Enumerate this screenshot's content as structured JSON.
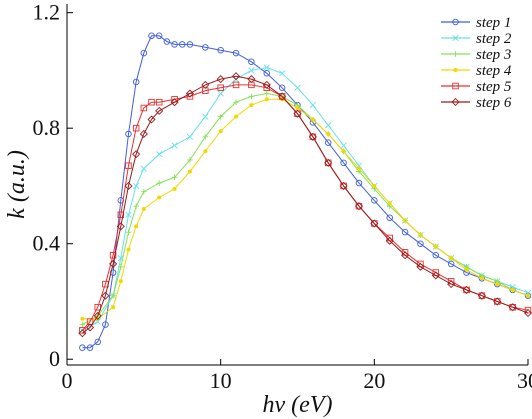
{
  "chart_data": {
    "type": "line",
    "title": "",
    "xlabel": "hν  (eV)",
    "ylabel": "k (a.u.)",
    "xlim": [
      0,
      30
    ],
    "ylim": [
      -0.02,
      1.23
    ],
    "xticks": [
      0,
      10,
      20,
      30
    ],
    "yticks": [
      0,
      0.4,
      0.8,
      1.2
    ],
    "xtick_labels": [
      "0",
      "10",
      "20",
      "30"
    ],
    "ytick_labels": [
      "0",
      "0.4",
      "0.8",
      "1.2"
    ],
    "grid": false,
    "legend_position": "top-right",
    "series": [
      {
        "name": "step 1",
        "color": "#3f5fe0",
        "marker": "circle",
        "x": [
          1,
          1.5,
          2,
          2.5,
          3,
          3.5,
          4,
          4.5,
          5,
          5.5,
          6,
          6.5,
          7,
          7.5,
          8,
          9,
          10,
          11,
          12,
          13,
          14,
          15,
          16,
          17,
          18,
          19,
          20,
          21,
          22,
          23,
          24,
          25,
          26,
          27,
          28,
          29,
          30
        ],
        "y": [
          0.04,
          0.04,
          0.06,
          0.12,
          0.3,
          0.55,
          0.78,
          0.96,
          1.06,
          1.12,
          1.12,
          1.1,
          1.09,
          1.09,
          1.09,
          1.08,
          1.07,
          1.06,
          1.03,
          0.99,
          0.94,
          0.88,
          0.82,
          0.75,
          0.68,
          0.61,
          0.55,
          0.49,
          0.44,
          0.4,
          0.36,
          0.33,
          0.3,
          0.28,
          0.26,
          0.24,
          0.22
        ]
      },
      {
        "name": "step 2",
        "color": "#66e0ee",
        "marker": "cross",
        "x": [
          1,
          2,
          3,
          3.5,
          4,
          4.5,
          5,
          6,
          7,
          8,
          9,
          10,
          11,
          12,
          13,
          14,
          15,
          16,
          17,
          18,
          19,
          20,
          21,
          22,
          23,
          24,
          25,
          26,
          27,
          28,
          29,
          30
        ],
        "y": [
          0.1,
          0.13,
          0.22,
          0.35,
          0.5,
          0.6,
          0.66,
          0.71,
          0.74,
          0.77,
          0.84,
          0.92,
          0.97,
          1.0,
          1.01,
          0.99,
          0.94,
          0.88,
          0.81,
          0.74,
          0.67,
          0.6,
          0.54,
          0.48,
          0.43,
          0.39,
          0.35,
          0.32,
          0.29,
          0.27,
          0.25,
          0.23
        ]
      },
      {
        "name": "step 3",
        "color": "#88e058",
        "marker": "plus",
        "x": [
          1,
          2,
          3,
          3.5,
          4,
          4.5,
          5,
          6,
          7,
          8,
          9,
          10,
          11,
          12,
          13,
          14,
          15,
          16,
          17,
          18,
          19,
          20,
          21,
          22,
          23,
          24,
          25,
          26,
          27,
          28,
          29,
          30
        ],
        "y": [
          0.12,
          0.15,
          0.22,
          0.32,
          0.44,
          0.53,
          0.58,
          0.61,
          0.63,
          0.69,
          0.77,
          0.84,
          0.89,
          0.91,
          0.92,
          0.91,
          0.88,
          0.83,
          0.78,
          0.72,
          0.65,
          0.59,
          0.53,
          0.48,
          0.43,
          0.39,
          0.35,
          0.32,
          0.29,
          0.27,
          0.24,
          0.22
        ]
      },
      {
        "name": "step 4",
        "color": "#f2d800",
        "marker": "dot",
        "x": [
          1,
          2,
          3,
          3.5,
          4,
          4.5,
          5,
          6,
          7,
          8,
          9,
          10,
          11,
          12,
          13,
          14,
          15,
          16,
          17,
          18,
          19,
          20,
          21,
          22,
          23,
          24,
          25,
          26,
          27,
          28,
          29,
          30
        ],
        "y": [
          0.14,
          0.14,
          0.18,
          0.27,
          0.38,
          0.46,
          0.52,
          0.56,
          0.59,
          0.65,
          0.72,
          0.79,
          0.84,
          0.88,
          0.9,
          0.9,
          0.87,
          0.83,
          0.78,
          0.72,
          0.66,
          0.6,
          0.54,
          0.48,
          0.43,
          0.39,
          0.35,
          0.31,
          0.28,
          0.26,
          0.24,
          0.22
        ]
      },
      {
        "name": "step 5",
        "color": "#e83030",
        "marker": "square",
        "x": [
          1,
          1.5,
          2,
          2.5,
          3,
          3.5,
          4,
          4.5,
          5,
          5.5,
          6,
          7,
          8,
          9,
          10,
          11,
          12,
          13,
          14,
          15,
          16,
          17,
          18,
          19,
          20,
          21,
          22,
          23,
          24,
          25,
          26,
          27,
          28,
          29,
          30
        ],
        "y": [
          0.1,
          0.13,
          0.18,
          0.26,
          0.36,
          0.5,
          0.67,
          0.8,
          0.87,
          0.89,
          0.89,
          0.9,
          0.91,
          0.93,
          0.94,
          0.95,
          0.95,
          0.94,
          0.91,
          0.85,
          0.77,
          0.68,
          0.6,
          0.53,
          0.47,
          0.42,
          0.37,
          0.33,
          0.3,
          0.27,
          0.24,
          0.22,
          0.2,
          0.18,
          0.17
        ]
      },
      {
        "name": "step 6",
        "color": "#9b1a1a",
        "marker": "diamond",
        "x": [
          1,
          1.5,
          2,
          2.5,
          3,
          3.5,
          4,
          4.5,
          5,
          5.5,
          6,
          7,
          8,
          9,
          10,
          11,
          12,
          13,
          14,
          15,
          16,
          17,
          18,
          19,
          20,
          21,
          22,
          23,
          24,
          25,
          26,
          27,
          28,
          29,
          30
        ],
        "y": [
          0.09,
          0.11,
          0.15,
          0.22,
          0.33,
          0.46,
          0.6,
          0.71,
          0.78,
          0.83,
          0.86,
          0.89,
          0.92,
          0.95,
          0.97,
          0.98,
          0.97,
          0.95,
          0.91,
          0.85,
          0.77,
          0.68,
          0.6,
          0.53,
          0.47,
          0.41,
          0.36,
          0.32,
          0.29,
          0.26,
          0.24,
          0.22,
          0.2,
          0.18,
          0.16
        ]
      }
    ]
  }
}
